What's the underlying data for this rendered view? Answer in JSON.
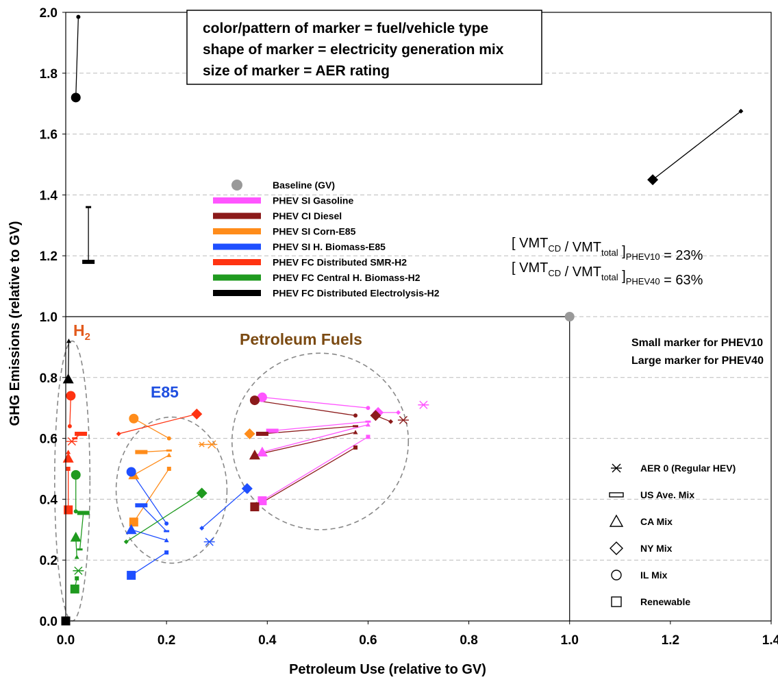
{
  "chart_data": {
    "type": "scatter",
    "xlabel": "Petroleum Use (relative to GV)",
    "ylabel": "GHG Emissions (relative to GV)",
    "xlim": [
      0,
      1.4
    ],
    "ylim": [
      0,
      2.0
    ],
    "xticks": [
      "0.0",
      "0.2",
      "0.4",
      "0.6",
      "0.8",
      "1.0",
      "1.2",
      "1.4"
    ],
    "yticks": [
      "0.0",
      "0.2",
      "0.4",
      "0.6",
      "0.8",
      "1.0",
      "1.2",
      "1.4",
      "1.6",
      "1.8",
      "2.0"
    ],
    "grid": "horizontal dashed",
    "info_box": [
      "color/pattern of marker = fuel/vehicle type",
      "shape of marker = electricity generation mix",
      "size of marker = AER rating"
    ],
    "ratio_notes": [
      {
        "main": "[ VMT",
        "sub1": "CD",
        "mid": " / VMT",
        "sub2": "total",
        "close": " ]",
        "sub3": "PHEV10",
        "value": " = 23%"
      },
      {
        "main": "[ VMT",
        "sub1": "CD",
        "mid": " / VMT",
        "sub2": "total",
        "close": " ]",
        "sub3": "PHEV40",
        "value": " = 63%"
      }
    ],
    "size_notes": [
      "Small  marker for PHEV10",
      "Large  marker for PHEV40"
    ],
    "region_labels": [
      {
        "text": "H",
        "sub": "2",
        "color": "#e25a1c"
      },
      {
        "text": "E85",
        "color": "#1f4fe0"
      },
      {
        "text": "Petroleum Fuels",
        "color": "#7b4a12"
      }
    ],
    "legend_fuel": [
      {
        "label": "Baseline (GV)",
        "color": "#999999",
        "kind": "dot"
      },
      {
        "label": "PHEV SI Gasoline",
        "color": "#ff55ff",
        "kind": "bar"
      },
      {
        "label": "PHEV CI Diesel",
        "color": "#8b1a1a",
        "kind": "bar"
      },
      {
        "label": "PHEV SI Corn-E85",
        "color": "#ff8c1a",
        "kind": "bar"
      },
      {
        "label": "PHEV SI H. Biomass-E85",
        "color": "#1f4fff",
        "kind": "bar"
      },
      {
        "label": "PHEV FC Distributed SMR-H2",
        "color": "#ff3311",
        "kind": "bar"
      },
      {
        "label": "PHEV FC Central H. Biomass-H2",
        "color": "#1f9a1f",
        "kind": "bar"
      },
      {
        "label": "PHEV FC Distributed Electrolysis-H2",
        "color": "#000000",
        "kind": "bar"
      }
    ],
    "legend_marker": [
      {
        "label": "AER 0 (Regular HEV)",
        "shape": "asterisk"
      },
      {
        "label": "US Ave. Mix",
        "shape": "dash"
      },
      {
        "label": "CA Mix",
        "shape": "triangle"
      },
      {
        "label": "NY Mix",
        "shape": "diamond"
      },
      {
        "label": "IL Mix",
        "shape": "circle"
      },
      {
        "label": "Renewable",
        "shape": "square"
      }
    ],
    "baseline": {
      "x": 1.0,
      "y": 1.0
    },
    "series": [
      {
        "name": "PHEV SI Gasoline",
        "color": "#ff55ff",
        "points": [
          {
            "shape": "asterisk",
            "x": 0.71,
            "y": 0.71,
            "size": "large"
          },
          {
            "shape": "circle",
            "x": 0.39,
            "y": 0.735,
            "size": "large"
          },
          {
            "shape": "circle",
            "x": 0.6,
            "y": 0.7,
            "size": "small"
          },
          {
            "shape": "diamond",
            "x": 0.62,
            "y": 0.685,
            "size": "large"
          },
          {
            "shape": "diamond",
            "x": 0.66,
            "y": 0.685,
            "size": "small"
          },
          {
            "shape": "dash",
            "x": 0.41,
            "y": 0.625,
            "size": "large"
          },
          {
            "shape": "dash",
            "x": 0.6,
            "y": 0.655,
            "size": "small"
          },
          {
            "shape": "triangle",
            "x": 0.39,
            "y": 0.555,
            "size": "large"
          },
          {
            "shape": "triangle",
            "x": 0.6,
            "y": 0.645,
            "size": "small"
          },
          {
            "shape": "square",
            "x": 0.39,
            "y": 0.395,
            "size": "large"
          },
          {
            "shape": "square",
            "x": 0.6,
            "y": 0.605,
            "size": "small"
          }
        ]
      },
      {
        "name": "PHEV CI Diesel",
        "color": "#8b1a1a",
        "points": [
          {
            "shape": "asterisk",
            "x": 0.67,
            "y": 0.66,
            "size": "large"
          },
          {
            "shape": "circle",
            "x": 0.375,
            "y": 0.725,
            "size": "large"
          },
          {
            "shape": "circle",
            "x": 0.575,
            "y": 0.675,
            "size": "small"
          },
          {
            "shape": "diamond",
            "x": 0.615,
            "y": 0.675,
            "size": "large"
          },
          {
            "shape": "diamond",
            "x": 0.645,
            "y": 0.655,
            "size": "small"
          },
          {
            "shape": "dash",
            "x": 0.39,
            "y": 0.615,
            "size": "large"
          },
          {
            "shape": "dash",
            "x": 0.575,
            "y": 0.64,
            "size": "small"
          },
          {
            "shape": "triangle",
            "x": 0.375,
            "y": 0.545,
            "size": "large"
          },
          {
            "shape": "triangle",
            "x": 0.575,
            "y": 0.62,
            "size": "small"
          },
          {
            "shape": "square",
            "x": 0.375,
            "y": 0.375,
            "size": "large"
          },
          {
            "shape": "square",
            "x": 0.575,
            "y": 0.57,
            "size": "small"
          }
        ]
      },
      {
        "name": "PHEV SI Corn-E85",
        "color": "#ff8c1a",
        "points": [
          {
            "shape": "asterisk",
            "x": 0.29,
            "y": 0.58,
            "size": "large"
          },
          {
            "shape": "asterisk",
            "x": 0.27,
            "y": 0.58,
            "size": "small"
          },
          {
            "shape": "circle",
            "x": 0.135,
            "y": 0.665,
            "size": "large"
          },
          {
            "shape": "circle",
            "x": 0.205,
            "y": 0.6,
            "size": "small"
          },
          {
            "shape": "diamond",
            "x": 0.365,
            "y": 0.615,
            "size": "large"
          },
          {
            "shape": "dash",
            "x": 0.15,
            "y": 0.555,
            "size": "large"
          },
          {
            "shape": "dash",
            "x": 0.205,
            "y": 0.56,
            "size": "small"
          },
          {
            "shape": "triangle",
            "x": 0.135,
            "y": 0.48,
            "size": "large"
          },
          {
            "shape": "triangle",
            "x": 0.205,
            "y": 0.545,
            "size": "small"
          },
          {
            "shape": "square",
            "x": 0.135,
            "y": 0.325,
            "size": "large"
          },
          {
            "shape": "square",
            "x": 0.205,
            "y": 0.5,
            "size": "small"
          }
        ]
      },
      {
        "name": "PHEV SI H. Biomass-E85",
        "color": "#1f4fff",
        "points": [
          {
            "shape": "asterisk",
            "x": 0.285,
            "y": 0.26,
            "size": "large"
          },
          {
            "shape": "circle",
            "x": 0.13,
            "y": 0.49,
            "size": "large"
          },
          {
            "shape": "circle",
            "x": 0.2,
            "y": 0.32,
            "size": "small"
          },
          {
            "shape": "diamond",
            "x": 0.36,
            "y": 0.435,
            "size": "large"
          },
          {
            "shape": "diamond",
            "x": 0.27,
            "y": 0.305,
            "size": "small"
          },
          {
            "shape": "dash",
            "x": 0.15,
            "y": 0.38,
            "size": "large"
          },
          {
            "shape": "dash",
            "x": 0.2,
            "y": 0.295,
            "size": "small"
          },
          {
            "shape": "triangle",
            "x": 0.13,
            "y": 0.3,
            "size": "large"
          },
          {
            "shape": "triangle",
            "x": 0.2,
            "y": 0.265,
            "size": "small"
          },
          {
            "shape": "square",
            "x": 0.13,
            "y": 0.15,
            "size": "large"
          },
          {
            "shape": "square",
            "x": 0.2,
            "y": 0.225,
            "size": "small"
          }
        ]
      },
      {
        "name": "PHEV FC Distributed SMR-H2",
        "color": "#ff3311",
        "points": [
          {
            "shape": "asterisk",
            "x": 0.012,
            "y": 0.59,
            "size": "large"
          },
          {
            "shape": "circle",
            "x": 0.01,
            "y": 0.74,
            "size": "large"
          },
          {
            "shape": "circle",
            "x": 0.008,
            "y": 0.64,
            "size": "small"
          },
          {
            "shape": "diamond",
            "x": 0.26,
            "y": 0.68,
            "size": "large"
          },
          {
            "shape": "diamond",
            "x": 0.105,
            "y": 0.615,
            "size": "small"
          },
          {
            "shape": "dash",
            "x": 0.03,
            "y": 0.615,
            "size": "large"
          },
          {
            "shape": "dash",
            "x": 0.018,
            "y": 0.6,
            "size": "small"
          },
          {
            "shape": "triangle",
            "x": 0.005,
            "y": 0.535,
            "size": "large"
          },
          {
            "shape": "triangle",
            "x": 0.005,
            "y": 0.555,
            "size": "small"
          },
          {
            "shape": "square",
            "x": 0.005,
            "y": 0.365,
            "size": "large"
          },
          {
            "shape": "square",
            "x": 0.005,
            "y": 0.5,
            "size": "small"
          }
        ]
      },
      {
        "name": "PHEV FC Central H. Biomass-H2",
        "color": "#1f9a1f",
        "points": [
          {
            "shape": "asterisk",
            "x": 0.025,
            "y": 0.165,
            "size": "large"
          },
          {
            "shape": "circle",
            "x": 0.02,
            "y": 0.48,
            "size": "large"
          },
          {
            "shape": "circle",
            "x": 0.02,
            "y": 0.36,
            "size": "small"
          },
          {
            "shape": "diamond",
            "x": 0.27,
            "y": 0.42,
            "size": "large"
          },
          {
            "shape": "diamond",
            "x": 0.12,
            "y": 0.26,
            "size": "small"
          },
          {
            "shape": "dash",
            "x": 0.035,
            "y": 0.355,
            "size": "large"
          },
          {
            "shape": "dash",
            "x": 0.028,
            "y": 0.235,
            "size": "small"
          },
          {
            "shape": "triangle",
            "x": 0.02,
            "y": 0.275,
            "size": "large"
          },
          {
            "shape": "triangle",
            "x": 0.022,
            "y": 0.21,
            "size": "small"
          },
          {
            "shape": "square",
            "x": 0.018,
            "y": 0.105,
            "size": "large"
          },
          {
            "shape": "square",
            "x": 0.022,
            "y": 0.14,
            "size": "small"
          }
        ]
      },
      {
        "name": "PHEV FC Distributed Electrolysis-H2",
        "color": "#000000",
        "points": [
          {
            "shape": "circle",
            "x": 0.02,
            "y": 1.72,
            "size": "large"
          },
          {
            "shape": "circle",
            "x": 0.025,
            "y": 1.985,
            "size": "small"
          },
          {
            "shape": "diamond",
            "x": 1.165,
            "y": 1.45,
            "size": "large"
          },
          {
            "shape": "diamond",
            "x": 1.34,
            "y": 1.675,
            "size": "small"
          },
          {
            "shape": "dash",
            "x": 0.045,
            "y": 1.18,
            "size": "large"
          },
          {
            "shape": "dash",
            "x": 0.045,
            "y": 1.36,
            "size": "small"
          },
          {
            "shape": "triangle",
            "x": 0.005,
            "y": 0.795,
            "size": "large"
          },
          {
            "shape": "triangle",
            "x": 0.006,
            "y": 0.92,
            "size": "small"
          },
          {
            "shape": "square",
            "x": 0.0,
            "y": 0.0,
            "size": "large"
          }
        ]
      }
    ]
  }
}
